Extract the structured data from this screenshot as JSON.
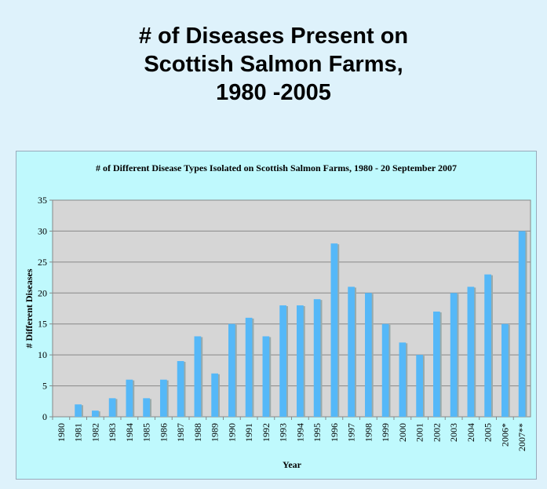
{
  "slide": {
    "title_lines": [
      "# of Diseases Present on",
      "Scottish Salmon Farms,",
      "1980 -2005"
    ]
  },
  "chart_data": {
    "type": "bar",
    "title": "# of Different Disease Types Isolated on Scottish Salmon Farms, 1980 - 20 September 2007",
    "xlabel": "Year",
    "ylabel": "# Different Diseases",
    "ylim": [
      0,
      35
    ],
    "yticks": [
      0,
      5,
      10,
      15,
      20,
      25,
      30,
      35
    ],
    "grid": true,
    "categories": [
      "1980",
      "1981",
      "1982",
      "1983",
      "1984",
      "1985",
      "1986",
      "1987",
      "1988",
      "1989",
      "1990",
      "1991",
      "1992",
      "1993",
      "1994",
      "1995",
      "1996",
      "1997",
      "1998",
      "1999",
      "2000",
      "2001",
      "2002",
      "2003",
      "2004",
      "2005",
      "2006*",
      "2007**"
    ],
    "values": [
      0,
      2,
      1,
      3,
      6,
      3,
      6,
      9,
      13,
      7,
      15,
      16,
      13,
      18,
      18,
      19,
      28,
      21,
      20,
      15,
      12,
      10,
      17,
      20,
      21,
      23,
      15,
      30
    ],
    "colors": {
      "bar": "#55b8f8",
      "plot_bg": "#d6d6d6",
      "panel_bg": "#bff9fd"
    }
  }
}
